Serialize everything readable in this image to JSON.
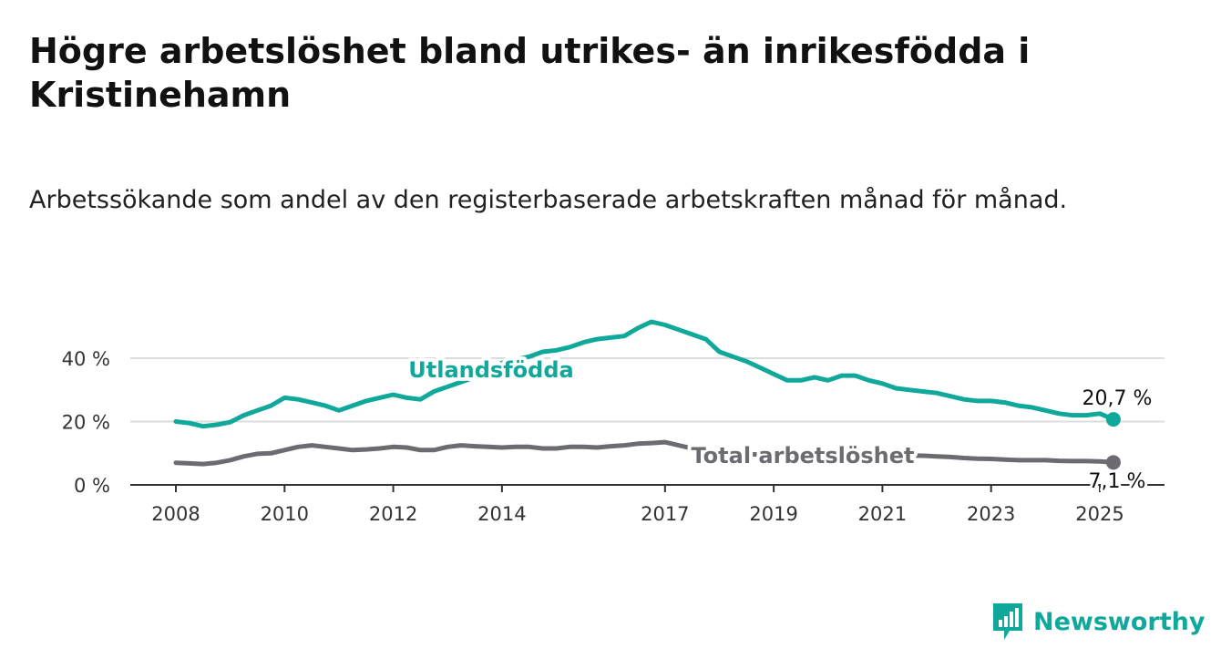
{
  "header": {
    "title": "Högre arbetslöshet bland utrikes- än inrikesfödda i Kristinehamn",
    "subtitle": "Arbetssökande som andel av den registerbaserade arbetskraften månad för månad."
  },
  "brand": {
    "name": "Newsworthy",
    "icon": "bar-chart-logo-icon",
    "color": "#10a89a"
  },
  "chart_data": {
    "type": "line",
    "title": "Högre arbetslöshet bland utrikes- än inrikesfödda i Kristinehamn",
    "subtitle": "Arbetssökande som andel av den registerbaserade arbetskraften månad för månad.",
    "xlabel": "",
    "ylabel": "",
    "x_ticks": [
      "2008",
      "2010",
      "2012",
      "2014",
      "2017",
      "2019",
      "2021",
      "2023",
      "2025"
    ],
    "y_ticks": [
      "0 %",
      "20 %",
      "40 %"
    ],
    "ylim": [
      0,
      55
    ],
    "xlim": [
      "2008-01",
      "2025-04"
    ],
    "grid": true,
    "legend": "inline labels",
    "series": [
      {
        "name": "Utlandsfödda",
        "color": "#10a89a",
        "end_label": "20,7 %",
        "end_value": 20.7,
        "points": [
          [
            "2008-01",
            20.0
          ],
          [
            "2008-04",
            19.5
          ],
          [
            "2008-07",
            18.5
          ],
          [
            "2008-10",
            19.0
          ],
          [
            "2009-01",
            19.8
          ],
          [
            "2009-04",
            22.0
          ],
          [
            "2009-07",
            23.5
          ],
          [
            "2009-10",
            25.0
          ],
          [
            "2010-01",
            27.5
          ],
          [
            "2010-04",
            27.0
          ],
          [
            "2010-07",
            26.0
          ],
          [
            "2010-10",
            25.0
          ],
          [
            "2011-01",
            23.5
          ],
          [
            "2011-04",
            25.0
          ],
          [
            "2011-07",
            26.5
          ],
          [
            "2011-10",
            27.5
          ],
          [
            "2012-01",
            28.5
          ],
          [
            "2012-04",
            27.5
          ],
          [
            "2012-07",
            27.0
          ],
          [
            "2012-10",
            29.5
          ],
          [
            "2013-01",
            31.0
          ],
          [
            "2013-04",
            32.5
          ],
          [
            "2013-07",
            34.0
          ],
          [
            "2013-10",
            36.5
          ],
          [
            "2014-01",
            38.5
          ],
          [
            "2014-04",
            39.5
          ],
          [
            "2014-07",
            40.5
          ],
          [
            "2014-10",
            42.0
          ],
          [
            "2015-01",
            42.5
          ],
          [
            "2015-04",
            43.5
          ],
          [
            "2015-07",
            45.0
          ],
          [
            "2015-10",
            46.0
          ],
          [
            "2016-01",
            46.5
          ],
          [
            "2016-04",
            47.0
          ],
          [
            "2016-07",
            49.5
          ],
          [
            "2016-10",
            51.5
          ],
          [
            "2017-01",
            50.5
          ],
          [
            "2017-04",
            49.0
          ],
          [
            "2017-07",
            47.5
          ],
          [
            "2017-10",
            46.0
          ],
          [
            "2018-01",
            42.0
          ],
          [
            "2018-04",
            40.5
          ],
          [
            "2018-07",
            39.0
          ],
          [
            "2018-10",
            37.0
          ],
          [
            "2019-01",
            35.0
          ],
          [
            "2019-04",
            33.0
          ],
          [
            "2019-07",
            33.0
          ],
          [
            "2019-10",
            34.0
          ],
          [
            "2020-01",
            33.0
          ],
          [
            "2020-04",
            34.5
          ],
          [
            "2020-07",
            34.5
          ],
          [
            "2020-10",
            33.0
          ],
          [
            "2021-01",
            32.0
          ],
          [
            "2021-04",
            30.5
          ],
          [
            "2021-07",
            30.0
          ],
          [
            "2021-10",
            29.5
          ],
          [
            "2022-01",
            29.0
          ],
          [
            "2022-04",
            28.0
          ],
          [
            "2022-07",
            27.0
          ],
          [
            "2022-10",
            26.5
          ],
          [
            "2023-01",
            26.5
          ],
          [
            "2023-04",
            26.0
          ],
          [
            "2023-07",
            25.0
          ],
          [
            "2023-10",
            24.5
          ],
          [
            "2024-01",
            23.5
          ],
          [
            "2024-04",
            22.5
          ],
          [
            "2024-07",
            22.0
          ],
          [
            "2024-10",
            22.0
          ],
          [
            "2025-01",
            22.5
          ],
          [
            "2025-04",
            20.7
          ]
        ]
      },
      {
        "name": "Total arbetslöshet",
        "color": "#6d6a72",
        "end_label": "7,1 %",
        "end_value": 7.1,
        "points": [
          [
            "2008-01",
            7.0
          ],
          [
            "2008-04",
            6.8
          ],
          [
            "2008-07",
            6.6
          ],
          [
            "2008-10",
            7.0
          ],
          [
            "2009-01",
            7.8
          ],
          [
            "2009-04",
            9.0
          ],
          [
            "2009-07",
            9.8
          ],
          [
            "2009-10",
            10.0
          ],
          [
            "2010-01",
            11.0
          ],
          [
            "2010-04",
            12.0
          ],
          [
            "2010-07",
            12.5
          ],
          [
            "2010-10",
            12.0
          ],
          [
            "2011-01",
            11.5
          ],
          [
            "2011-04",
            11.0
          ],
          [
            "2011-07",
            11.2
          ],
          [
            "2011-10",
            11.5
          ],
          [
            "2012-01",
            12.0
          ],
          [
            "2012-04",
            11.8
          ],
          [
            "2012-07",
            11.0
          ],
          [
            "2012-10",
            11.0
          ],
          [
            "2013-01",
            12.0
          ],
          [
            "2013-04",
            12.5
          ],
          [
            "2013-07",
            12.2
          ],
          [
            "2013-10",
            12.0
          ],
          [
            "2014-01",
            11.8
          ],
          [
            "2014-04",
            12.0
          ],
          [
            "2014-07",
            12.0
          ],
          [
            "2014-10",
            11.5
          ],
          [
            "2015-01",
            11.5
          ],
          [
            "2015-04",
            12.0
          ],
          [
            "2015-07",
            12.0
          ],
          [
            "2015-10",
            11.8
          ],
          [
            "2016-01",
            12.2
          ],
          [
            "2016-04",
            12.5
          ],
          [
            "2016-07",
            13.0
          ],
          [
            "2016-10",
            13.2
          ],
          [
            "2017-01",
            13.5
          ],
          [
            "2017-04",
            12.5
          ],
          [
            "2017-07",
            11.5
          ],
          [
            "2017-10",
            11.0
          ],
          [
            "2018-01",
            10.5
          ],
          [
            "2018-04",
            10.0
          ],
          [
            "2018-07",
            9.8
          ],
          [
            "2018-10",
            9.5
          ],
          [
            "2019-01",
            9.5
          ],
          [
            "2019-04",
            9.3
          ],
          [
            "2019-07",
            9.5
          ],
          [
            "2019-10",
            9.8
          ],
          [
            "2020-01",
            10.0
          ],
          [
            "2020-04",
            10.2
          ],
          [
            "2020-07",
            10.0
          ],
          [
            "2020-10",
            9.8
          ],
          [
            "2021-01",
            9.8
          ],
          [
            "2021-04",
            9.5
          ],
          [
            "2021-07",
            9.3
          ],
          [
            "2021-10",
            9.2
          ],
          [
            "2022-01",
            9.0
          ],
          [
            "2022-04",
            8.8
          ],
          [
            "2022-07",
            8.5
          ],
          [
            "2022-10",
            8.3
          ],
          [
            "2023-01",
            8.2
          ],
          [
            "2023-04",
            8.0
          ],
          [
            "2023-07",
            7.8
          ],
          [
            "2023-10",
            7.8
          ],
          [
            "2024-01",
            7.8
          ],
          [
            "2024-04",
            7.6
          ],
          [
            "2024-07",
            7.5
          ],
          [
            "2024-10",
            7.5
          ],
          [
            "2025-01",
            7.4
          ],
          [
            "2025-04",
            7.1
          ]
        ]
      }
    ]
  }
}
